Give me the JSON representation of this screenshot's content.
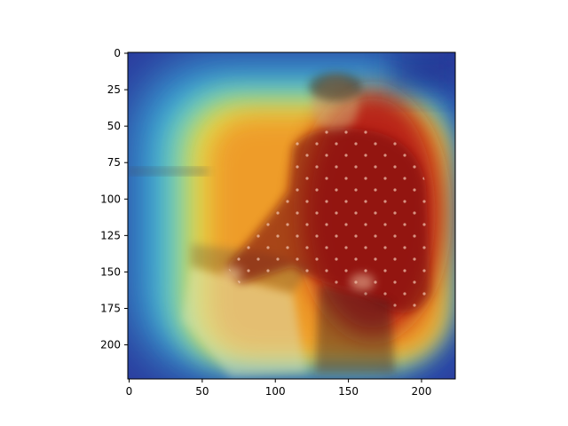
{
  "figure": {
    "image_content": "sepia photograph of a seated woman in a dark patterned dress, overlaid with a jet-colormap attention heatmap",
    "colormap": "jet",
    "heat_colors": {
      "cold": "#1e28b4",
      "cool": "#3cb4dc",
      "mid": "#f0dc3c",
      "warm": "#f09628",
      "hot": "#b41414"
    }
  },
  "chart_data": {
    "type": "heatmap",
    "xlim": [
      0,
      224
    ],
    "ylim": [
      224,
      0
    ],
    "x_ticks": [
      0,
      50,
      100,
      150,
      200
    ],
    "y_ticks": [
      0,
      25,
      50,
      75,
      100,
      125,
      150,
      175,
      200
    ],
    "grid": false
  }
}
